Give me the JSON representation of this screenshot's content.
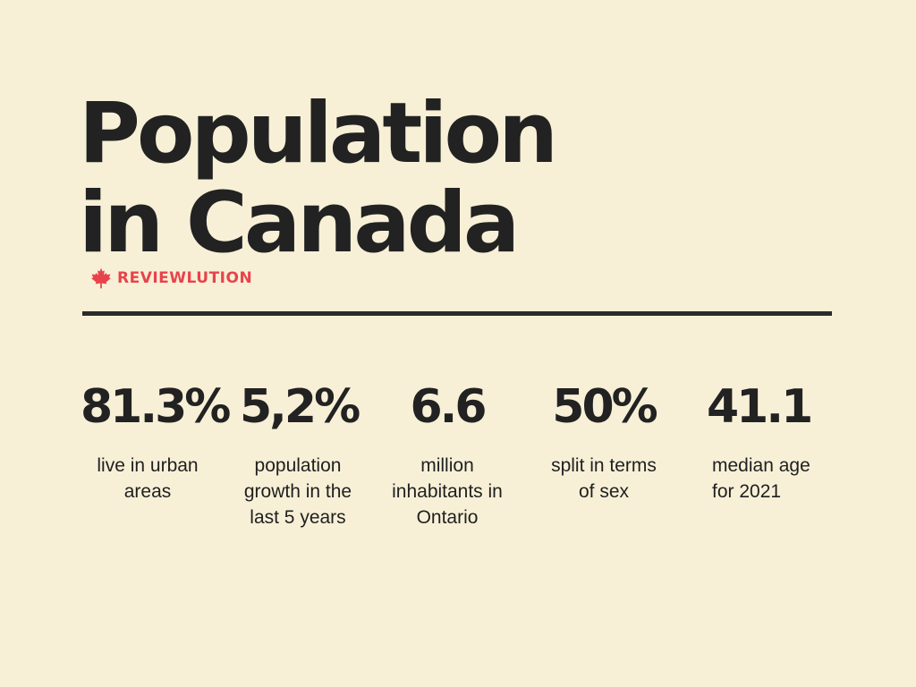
{
  "title": {
    "line1": "Population",
    "line2": "in Canada"
  },
  "brand": {
    "name": "REVIEWLUTION",
    "icon": "maple-leaf-icon",
    "color": "#e8434b"
  },
  "colors": {
    "background": "#f7f0d7",
    "text": "#222222"
  },
  "stats": [
    {
      "value": "81.3%",
      "label": "live in urban areas"
    },
    {
      "value": "5,2%",
      "label": "population growth in the last 5 years"
    },
    {
      "value": "6.6",
      "label": "million inhabitants in Ontario"
    },
    {
      "value": "50%",
      "label": "split in terms of sex"
    },
    {
      "value": "41.1",
      "label": "median age for 2021"
    }
  ]
}
